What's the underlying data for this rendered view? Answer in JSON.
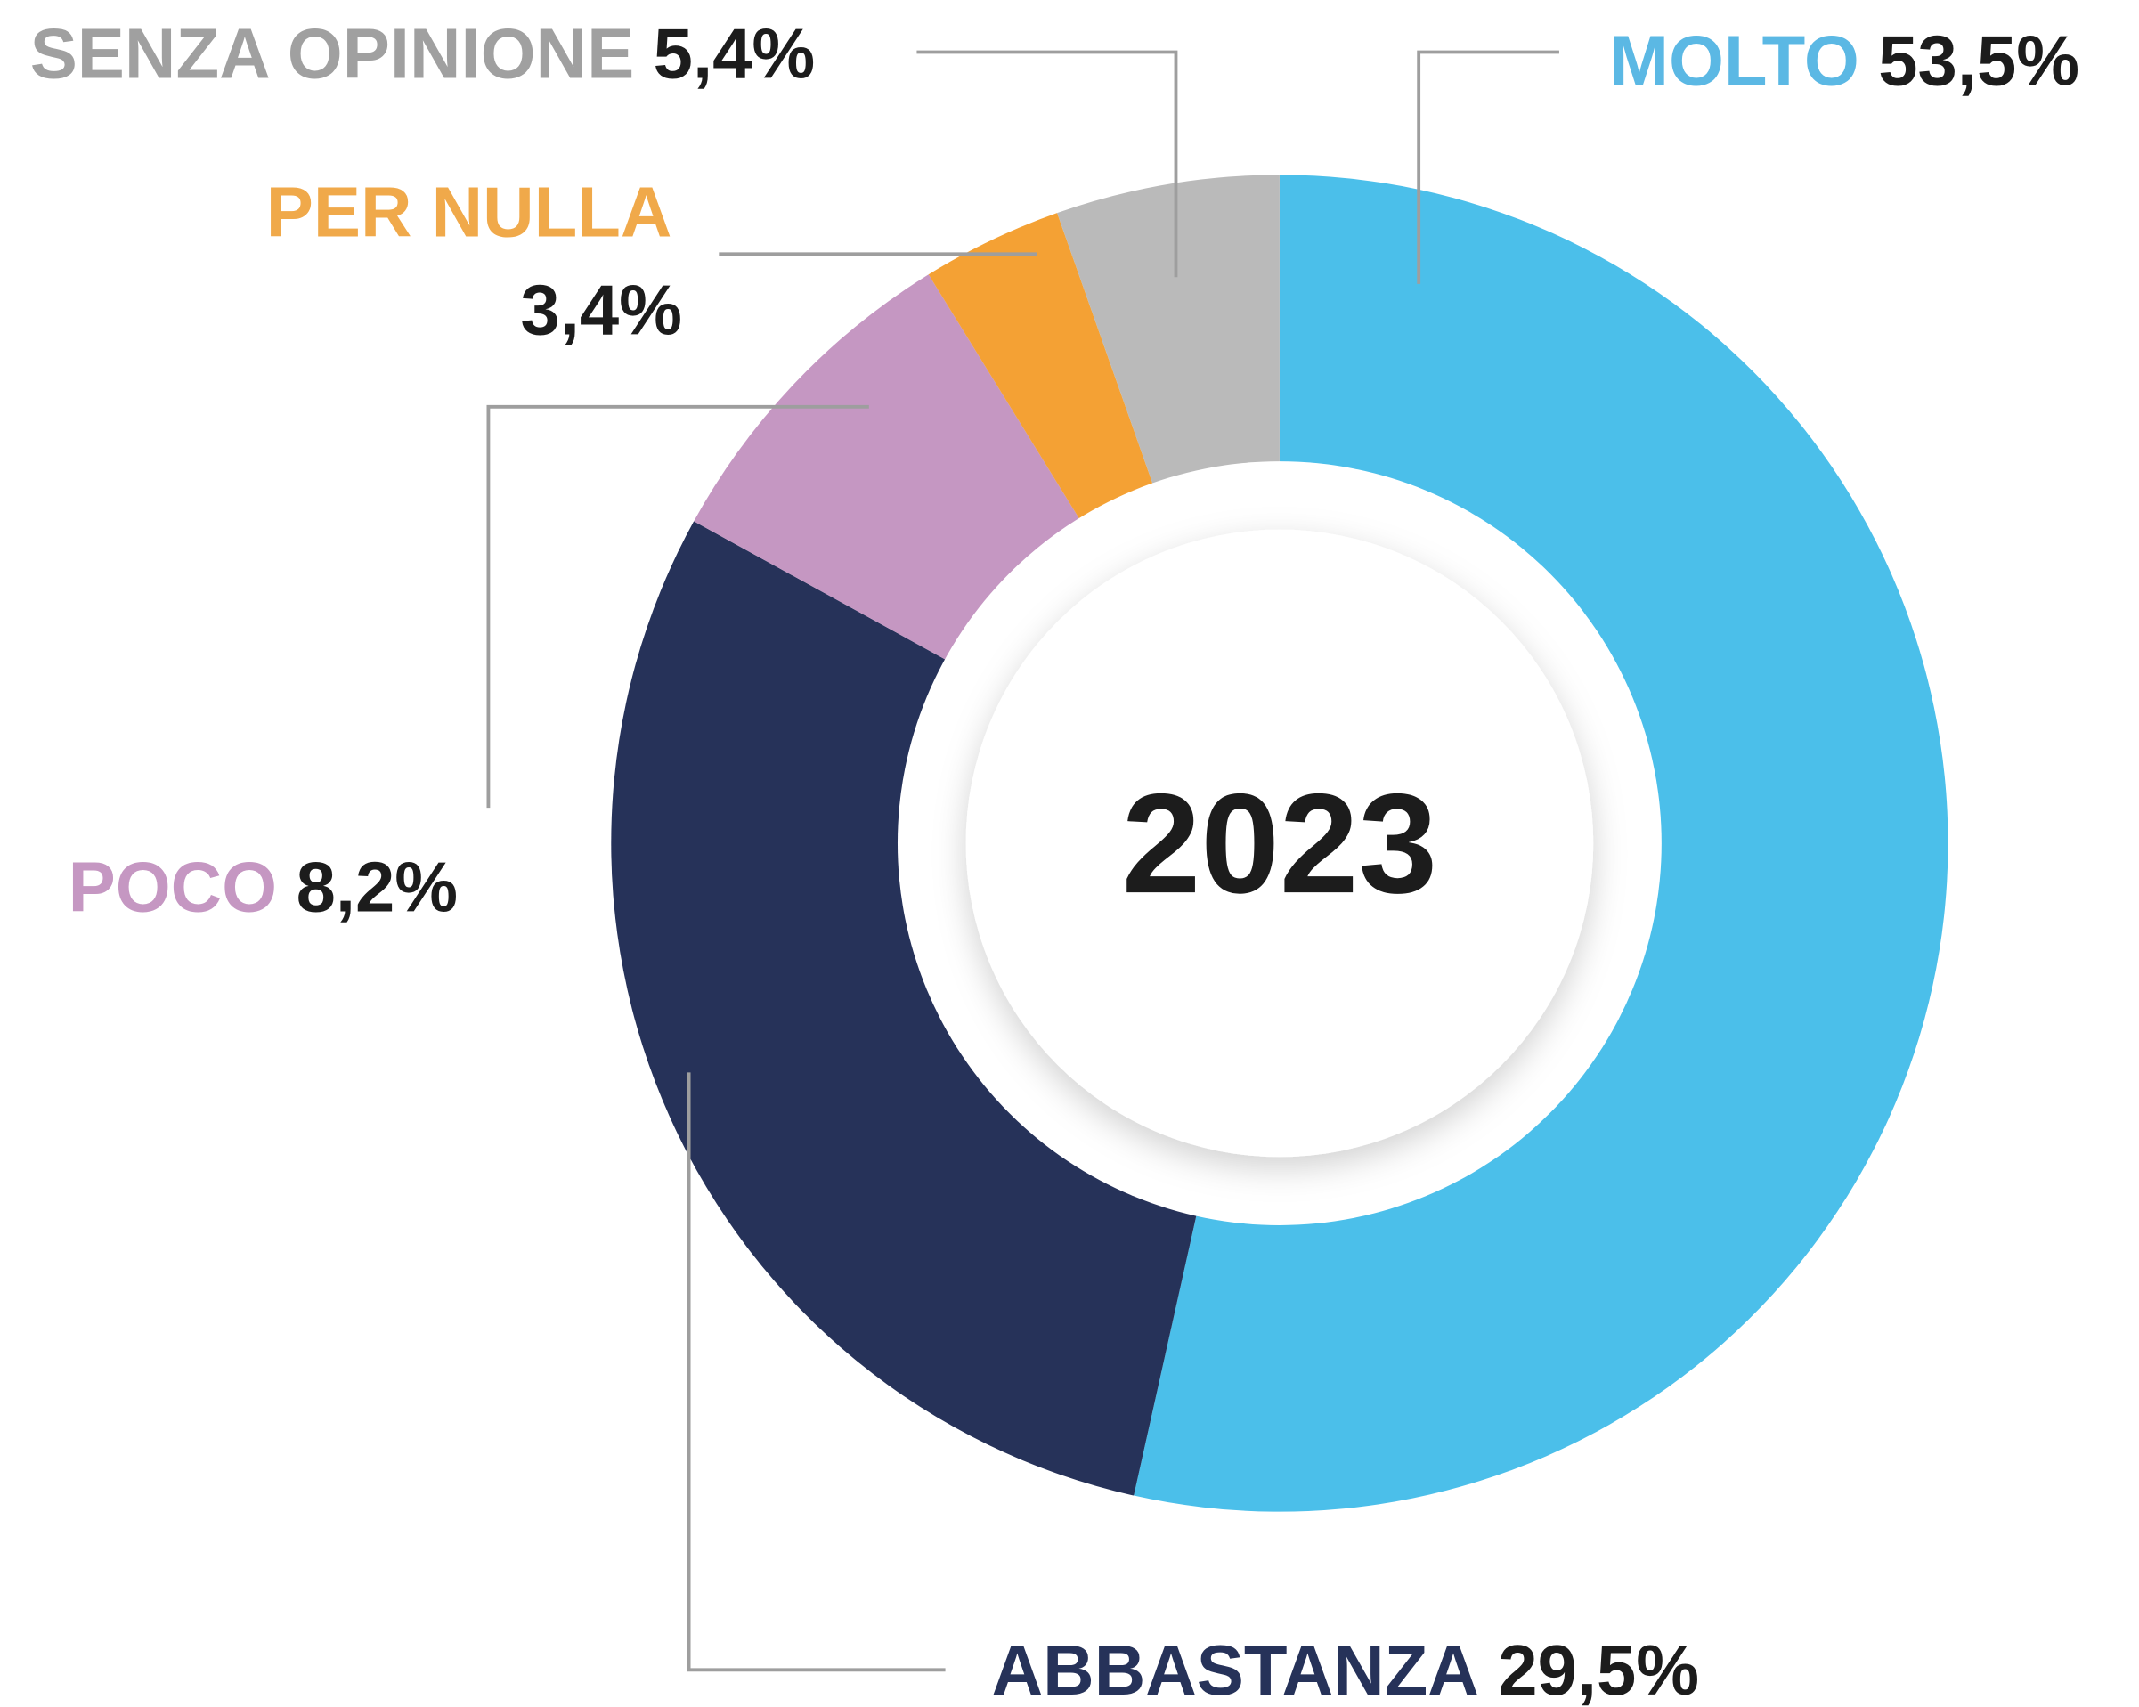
{
  "chart_data": {
    "type": "donut",
    "center_label": "2023",
    "categories": [
      "MOLTO",
      "ABBASTANZA",
      "POCO",
      "PER NULLA",
      "SENZA OPINIONE"
    ],
    "values": [
      53.5,
      29.5,
      8.2,
      3.4,
      5.4
    ],
    "value_labels": [
      "53,5%",
      "29,5%",
      "8,2%",
      "3,4%",
      "5,4%"
    ],
    "colors": [
      "#4bbfea",
      "#263259",
      "#c597c2",
      "#f4a134",
      "#bababa"
    ],
    "label_colors": [
      "#5bb8e4",
      "#263259",
      "#c597c2",
      "#f0a94a",
      "#a0a0a0"
    ]
  }
}
